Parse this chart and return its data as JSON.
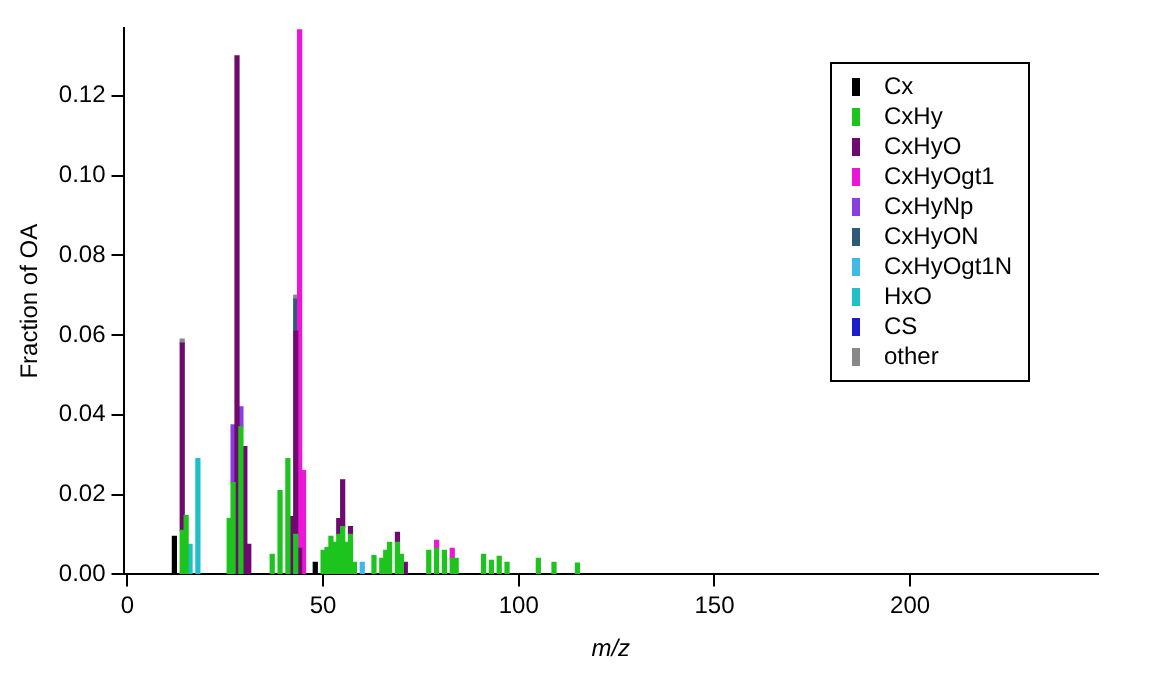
{
  "chart_data": {
    "type": "bar",
    "stacked": true,
    "xlabel": "m/z",
    "ylabel": "Fraction of OA",
    "x": [
      12,
      14,
      15,
      16,
      18,
      26,
      27,
      28,
      29,
      30,
      31,
      37,
      39,
      41,
      42,
      43,
      44,
      45,
      48,
      50,
      51,
      52,
      53,
      54,
      55,
      56,
      57,
      58,
      60,
      63,
      65,
      66,
      67,
      69,
      70,
      71,
      77,
      79,
      81,
      83,
      84,
      91,
      93,
      95,
      97,
      105,
      109,
      115
    ],
    "xlim": [
      -1,
      248
    ],
    "xticks": [
      0,
      50,
      100,
      150,
      200
    ],
    "ylim": [
      0,
      0.137
    ],
    "yticks": [
      {
        "value": 0,
        "label": "0.00"
      },
      {
        "value": 0.02,
        "label": "0.02"
      },
      {
        "value": 0.04,
        "label": "0.04"
      },
      {
        "value": 0.06,
        "label": "0.06"
      },
      {
        "value": 0.08,
        "label": "0.08"
      },
      {
        "value": 0.1,
        "label": "0.10"
      },
      {
        "value": 0.12,
        "label": "0.12"
      }
    ],
    "grid": false,
    "legend": "top right",
    "series": [
      {
        "name": "Cx",
        "color": "#000000",
        "values": [
          0.0095,
          null,
          null,
          null,
          null,
          null,
          null,
          null,
          null,
          null,
          null,
          null,
          null,
          null,
          null,
          null,
          null,
          null,
          0.003,
          null,
          null,
          null,
          null,
          null,
          null,
          null,
          null,
          null,
          null,
          null,
          null,
          null,
          null,
          null,
          null,
          null,
          null,
          null,
          null,
          null,
          null,
          null,
          null,
          null,
          null,
          null,
          null,
          null
        ]
      },
      {
        "name": "CxHy",
        "color": "#1dc41d",
        "values": [
          null,
          0.011,
          0.0147,
          null,
          null,
          0.014,
          0.023,
          null,
          0.037,
          null,
          null,
          0.005,
          0.021,
          0.029,
          null,
          0.01,
          null,
          null,
          null,
          0.006,
          0.0067,
          0.0095,
          0.008,
          0.01,
          0.012,
          0.008,
          0.01,
          0.003,
          null,
          0.0047,
          0.004,
          0.006,
          0.008,
          0.008,
          0.005,
          null,
          0.006,
          0.0065,
          0.006,
          0.004,
          0.004,
          0.005,
          0.0035,
          0.0045,
          0.003,
          0.004,
          0.003,
          0.0028
        ]
      },
      {
        "name": "CxHyO",
        "color": "#6e0a6e",
        "values": [
          null,
          0.047,
          null,
          null,
          null,
          null,
          null,
          0.13,
          null,
          0.032,
          0.0075,
          null,
          null,
          null,
          0.0145,
          0.051,
          0.0065,
          null,
          null,
          null,
          null,
          null,
          null,
          0.004,
          0.0117,
          null,
          0.002,
          null,
          null,
          null,
          null,
          null,
          null,
          0.0025,
          null,
          0.003,
          null,
          null,
          null,
          null,
          null,
          null,
          null,
          null,
          null,
          null,
          null,
          null
        ]
      },
      {
        "name": "CxHyOgt1",
        "color": "#ee14d8",
        "values": [
          null,
          null,
          null,
          null,
          null,
          null,
          null,
          null,
          null,
          null,
          null,
          null,
          null,
          null,
          null,
          null,
          0.13,
          0.026,
          null,
          null,
          null,
          null,
          null,
          null,
          null,
          null,
          null,
          null,
          null,
          null,
          null,
          null,
          null,
          null,
          null,
          null,
          null,
          0.002,
          null,
          0.0025,
          null,
          null,
          null,
          null,
          null,
          null,
          null,
          null
        ]
      },
      {
        "name": "CxHyNp",
        "color": "#8a3ee0",
        "values": [
          null,
          null,
          null,
          null,
          null,
          null,
          0.0145,
          null,
          0.005,
          null,
          null,
          null,
          null,
          null,
          null,
          null,
          null,
          null,
          null,
          null,
          null,
          null,
          null,
          null,
          null,
          null,
          null,
          null,
          null,
          null,
          null,
          null,
          null,
          null,
          null,
          null,
          null,
          null,
          null,
          null,
          null,
          null,
          null,
          null,
          null,
          null,
          null,
          null
        ]
      },
      {
        "name": "CxHyON",
        "color": "#2d5a78",
        "values": [
          null,
          null,
          null,
          null,
          null,
          null,
          null,
          null,
          null,
          null,
          null,
          null,
          null,
          null,
          null,
          0.008,
          null,
          null,
          null,
          null,
          null,
          null,
          null,
          null,
          null,
          null,
          null,
          null,
          null,
          null,
          null,
          null,
          null,
          null,
          null,
          null,
          null,
          null,
          null,
          null,
          null,
          null,
          null,
          null,
          null,
          null,
          null,
          null
        ]
      },
      {
        "name": "CxHyOgt1N",
        "color": "#40b8e8",
        "values": [
          null,
          null,
          null,
          null,
          null,
          null,
          null,
          null,
          null,
          null,
          null,
          null,
          null,
          null,
          null,
          null,
          null,
          null,
          null,
          null,
          null,
          null,
          null,
          null,
          null,
          null,
          null,
          null,
          0.003,
          null,
          null,
          null,
          null,
          null,
          null,
          null,
          null,
          null,
          null,
          null,
          null,
          null,
          null,
          null,
          null,
          null,
          null,
          null
        ]
      },
      {
        "name": "HxO",
        "color": "#1ec0c8",
        "values": [
          null,
          null,
          null,
          0.0075,
          0.029,
          null,
          null,
          null,
          null,
          null,
          null,
          null,
          null,
          null,
          null,
          null,
          null,
          null,
          null,
          null,
          null,
          null,
          null,
          null,
          null,
          null,
          null,
          null,
          null,
          null,
          null,
          null,
          null,
          null,
          null,
          null,
          null,
          null,
          null,
          null,
          null,
          null,
          null,
          null,
          null,
          null,
          null,
          null
        ]
      },
      {
        "name": "CS",
        "color": "#1c1ccc",
        "values": [
          null,
          null,
          null,
          null,
          null,
          null,
          null,
          null,
          null,
          null,
          null,
          null,
          null,
          null,
          null,
          null,
          null,
          null,
          null,
          null,
          null,
          null,
          null,
          null,
          null,
          null,
          null,
          null,
          null,
          null,
          null,
          null,
          null,
          null,
          null,
          null,
          null,
          null,
          null,
          null,
          null,
          null,
          null,
          null,
          null,
          null,
          null,
          null
        ]
      },
      {
        "name": "other",
        "color": "#888888",
        "values": [
          null,
          0.001,
          null,
          null,
          null,
          null,
          null,
          null,
          null,
          null,
          null,
          null,
          null,
          null,
          null,
          0.001,
          null,
          null,
          null,
          null,
          null,
          null,
          null,
          null,
          null,
          null,
          null,
          null,
          null,
          null,
          null,
          null,
          null,
          null,
          null,
          null,
          null,
          null,
          null,
          null,
          null,
          null,
          null,
          null,
          null,
          null,
          null,
          null
        ]
      }
    ]
  }
}
